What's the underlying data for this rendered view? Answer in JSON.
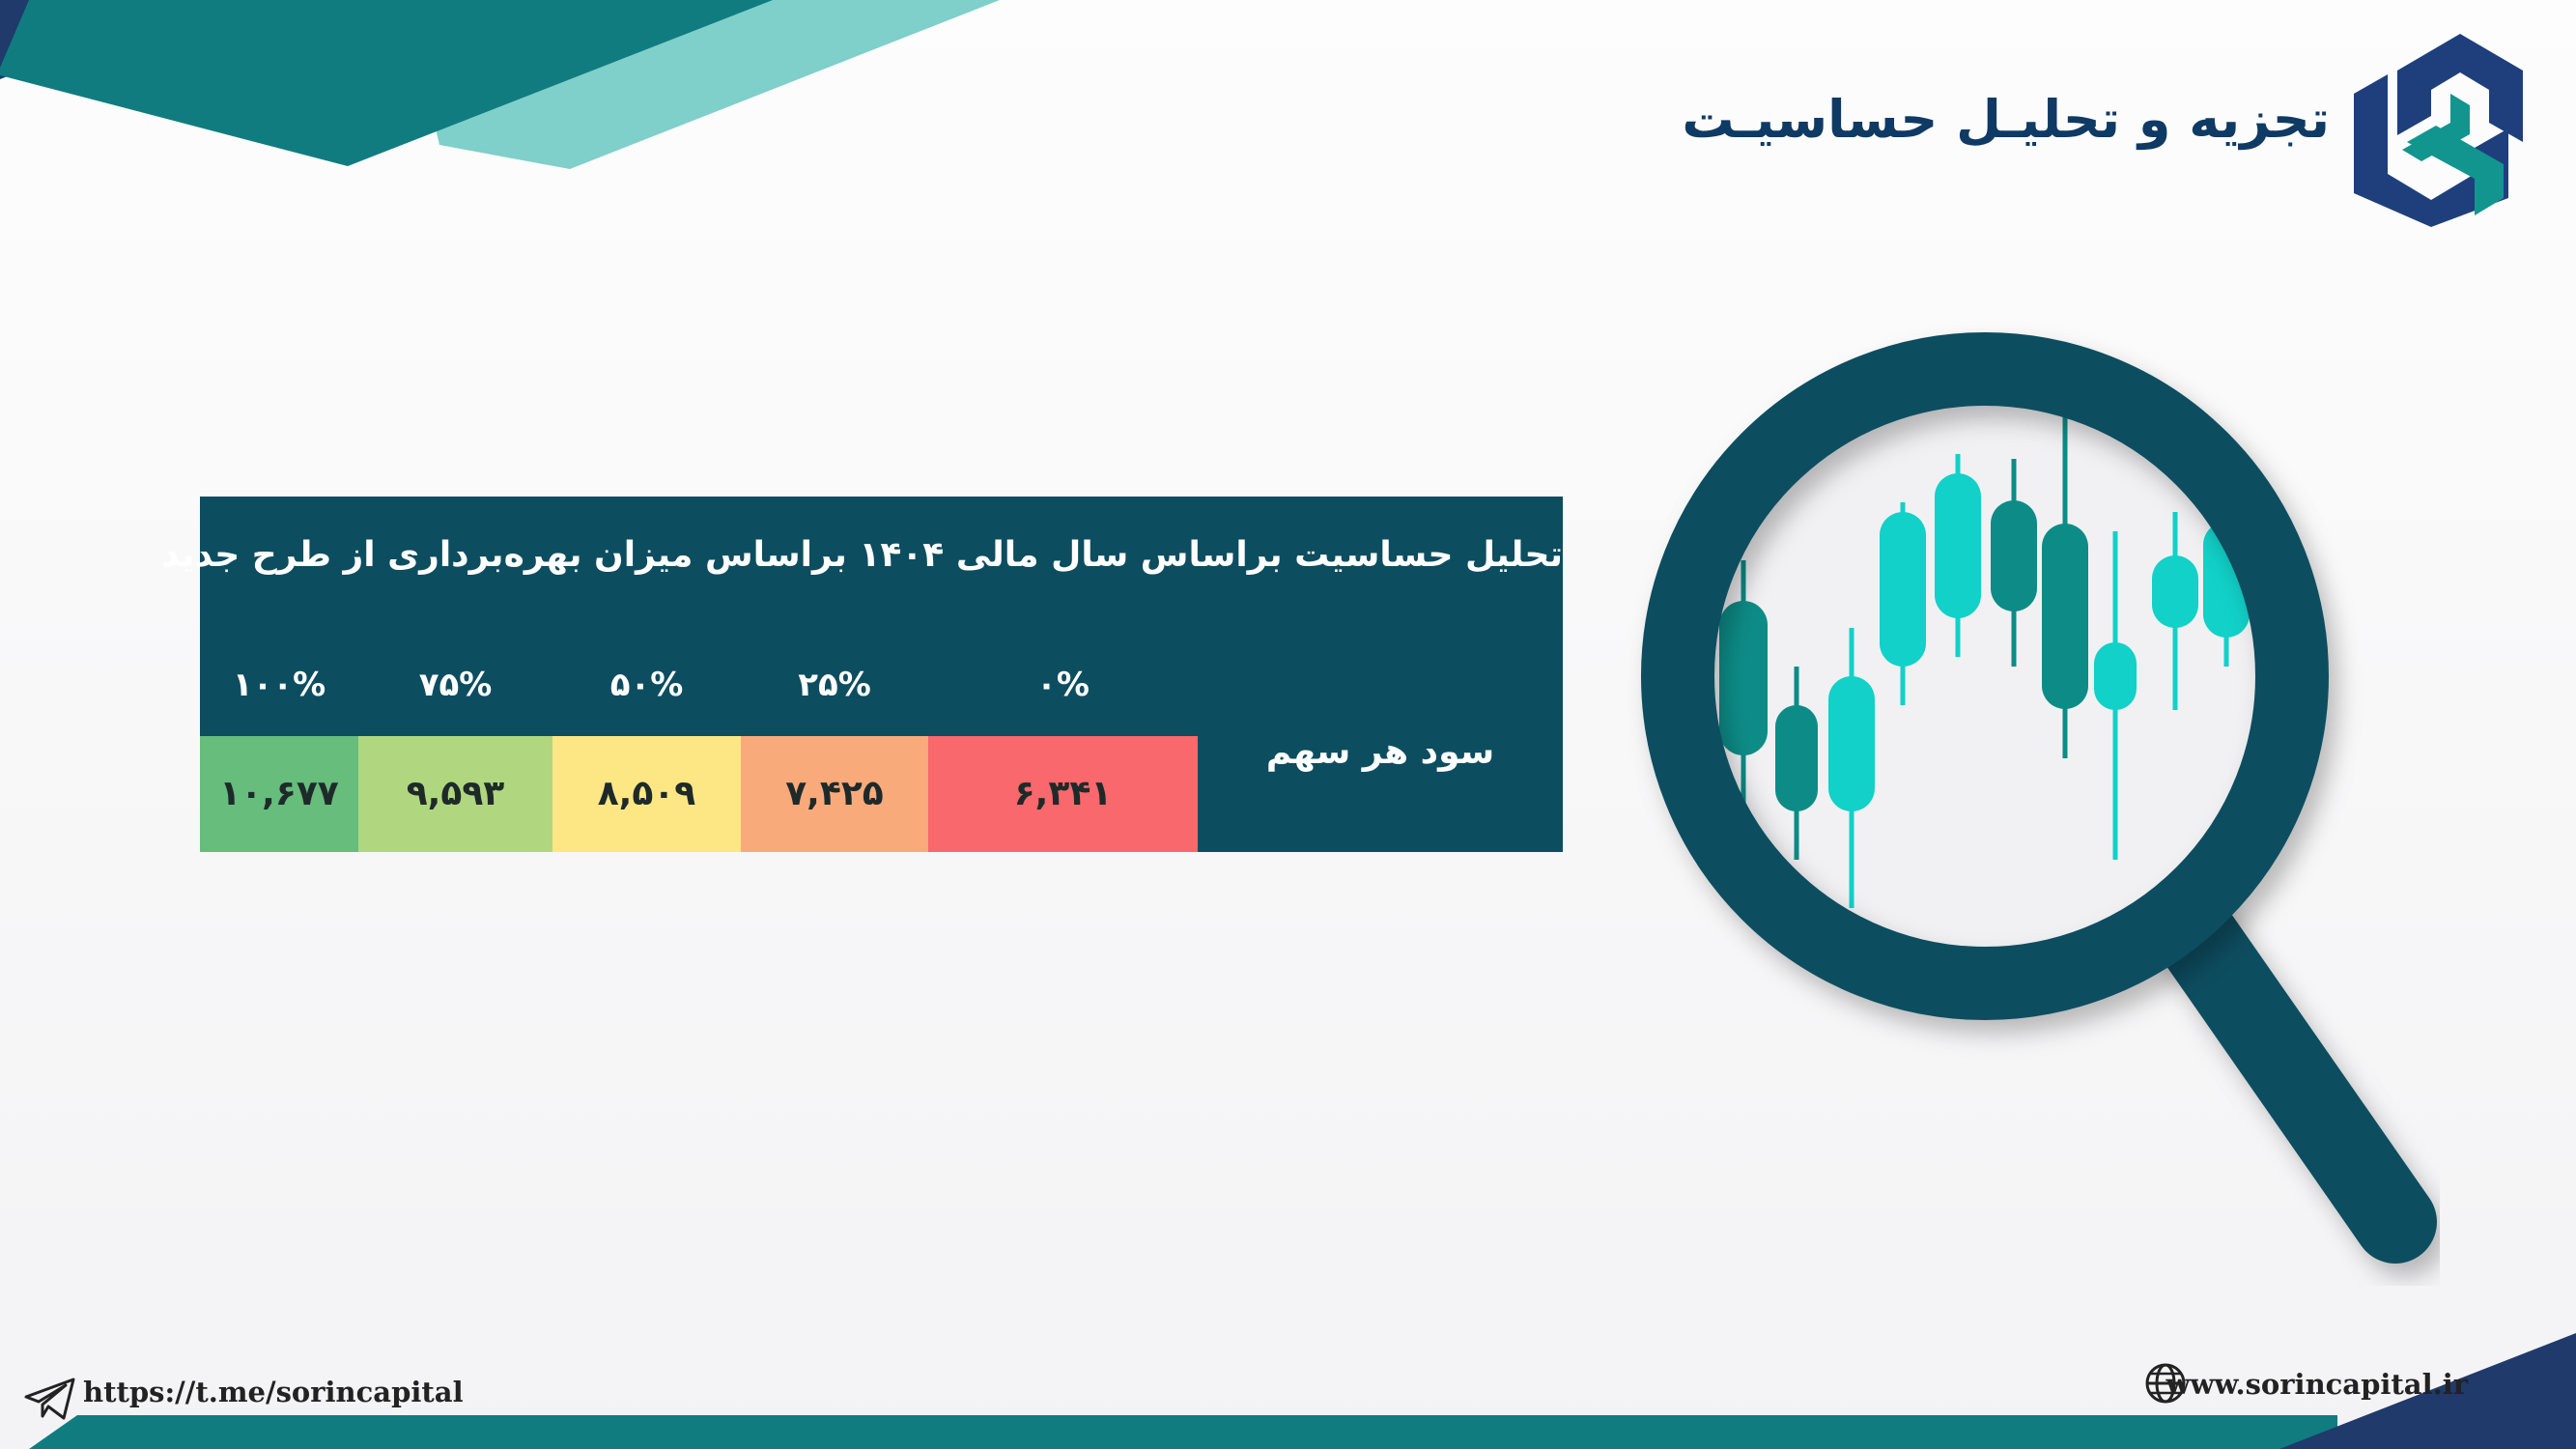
{
  "header": {
    "title": "تجزیه و تحلیـل حساسیـت"
  },
  "table": {
    "title": "تحلیل حساسیت براساس سال مالی ۱۴۰۴ براساس میزان بهره‌برداری از طرح جدید",
    "row_label": "سود هر سهم",
    "columns": [
      {
        "header": "۱۰۰%",
        "value": "۱۰,۶۷۷",
        "color": "#66bd7c"
      },
      {
        "header": "۷۵%",
        "value": "۹,۵۹۳",
        "color": "#b0d77f"
      },
      {
        "header": "۵۰%",
        "value": "۸,۵۰۹",
        "color": "#fde784"
      },
      {
        "header": "۲۵%",
        "value": "۷,۴۲۵",
        "color": "#f9aa7b"
      },
      {
        "header": "۰%",
        "value": "۶,۳۴۱",
        "color": "#f8686c"
      }
    ]
  },
  "footer": {
    "telegram": "https://t.me/sorincapital",
    "website": "www.sorincapital.ir"
  },
  "colors": {
    "primary_dark": "#0d4d60",
    "title_navy": "#0f3a64",
    "teal": "#0f7c80",
    "light_teal": "#7fcfcb",
    "candle_light": "#11d1c8",
    "candle_dark": "#0d8c87"
  },
  "icons": [
    "logo-icon",
    "magnifier-chart-illustration",
    "telegram-icon",
    "globe-icon"
  ]
}
